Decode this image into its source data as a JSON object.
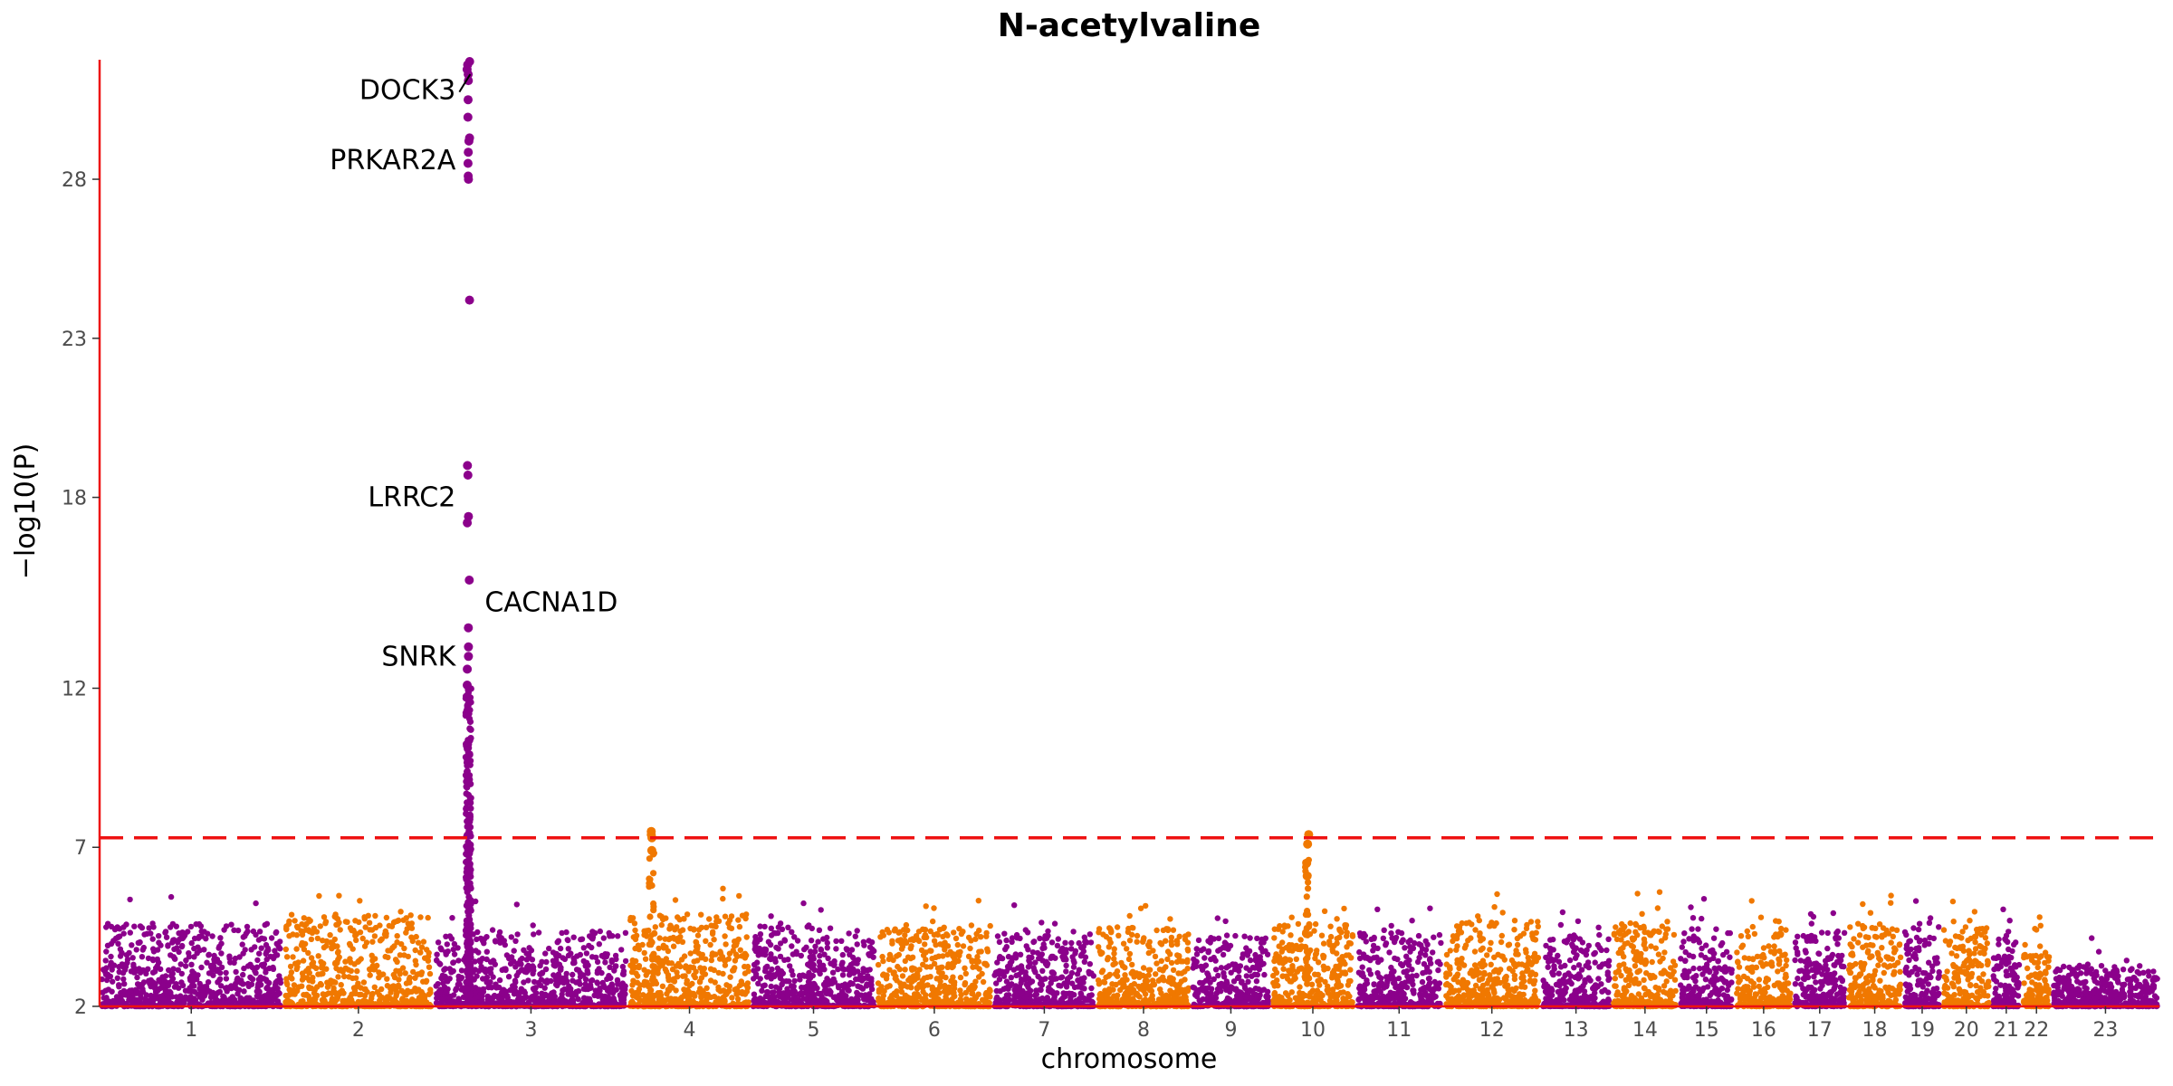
{
  "colors": {
    "odd_chromosome": "#8B008B",
    "even_chromosome": "#F07800",
    "threshold_line": "#EE1111",
    "axis_line": "#EE1111",
    "tick_text": "#4d4d4d"
  },
  "chart_data": {
    "type": "scatter",
    "subtype": "manhattan",
    "title": "N-acetylvaline",
    "xlabel": "chromosome",
    "ylabel": "−log10(P)",
    "ylim": [
      2,
      31.7
    ],
    "yticks": [
      2,
      7,
      12,
      18,
      23,
      28
    ],
    "genome_wide_threshold": 7.3,
    "grid": false,
    "chromosomes": [
      {
        "label": "1",
        "start": 0,
        "end": 0.85,
        "color": "odd_chromosome",
        "max_bg": 4.6
      },
      {
        "label": "2",
        "start": 0.85,
        "end": 1.55,
        "color": "even_chromosome",
        "max_bg": 4.9
      },
      {
        "label": "3",
        "start": 1.55,
        "end": 2.45,
        "color": "odd_chromosome",
        "max_bg": 4.4
      },
      {
        "label": "4",
        "start": 2.45,
        "end": 3.02,
        "color": "even_chromosome",
        "max_bg": 4.9
      },
      {
        "label": "5",
        "start": 3.02,
        "end": 3.6,
        "color": "odd_chromosome",
        "max_bg": 4.6
      },
      {
        "label": "6",
        "start": 3.6,
        "end": 4.14,
        "color": "even_chromosome",
        "max_bg": 4.6
      },
      {
        "label": "7",
        "start": 4.14,
        "end": 4.62,
        "color": "odd_chromosome",
        "max_bg": 4.4
      },
      {
        "label": "8",
        "start": 4.62,
        "end": 5.06,
        "color": "even_chromosome",
        "max_bg": 4.5
      },
      {
        "label": "9",
        "start": 5.06,
        "end": 5.43,
        "color": "odd_chromosome",
        "max_bg": 4.2
      },
      {
        "label": "10",
        "start": 5.43,
        "end": 5.82,
        "color": "even_chromosome",
        "max_bg": 4.6
      },
      {
        "label": "11",
        "start": 5.82,
        "end": 6.23,
        "color": "odd_chromosome",
        "max_bg": 4.4
      },
      {
        "label": "12",
        "start": 6.23,
        "end": 6.68,
        "color": "even_chromosome",
        "max_bg": 4.7
      },
      {
        "label": "13",
        "start": 6.68,
        "end": 7.01,
        "color": "odd_chromosome",
        "max_bg": 4.3
      },
      {
        "label": "14",
        "start": 7.01,
        "end": 7.32,
        "color": "even_chromosome",
        "max_bg": 4.7
      },
      {
        "label": "15",
        "start": 7.32,
        "end": 7.58,
        "color": "odd_chromosome",
        "max_bg": 4.5
      },
      {
        "label": "16",
        "start": 7.58,
        "end": 7.85,
        "color": "even_chromosome",
        "max_bg": 4.5
      },
      {
        "label": "17",
        "start": 7.85,
        "end": 8.1,
        "color": "odd_chromosome",
        "max_bg": 4.4
      },
      {
        "label": "18",
        "start": 8.1,
        "end": 8.36,
        "color": "even_chromosome",
        "max_bg": 4.6
      },
      {
        "label": "19",
        "start": 8.36,
        "end": 8.54,
        "color": "odd_chromosome",
        "max_bg": 4.5
      },
      {
        "label": "20",
        "start": 8.54,
        "end": 8.77,
        "color": "even_chromosome",
        "max_bg": 4.5
      },
      {
        "label": "21",
        "start": 8.77,
        "end": 8.91,
        "color": "odd_chromosome",
        "max_bg": 4.2
      },
      {
        "label": "22",
        "start": 8.91,
        "end": 9.05,
        "color": "even_chromosome",
        "max_bg": 4.0
      },
      {
        "label": "23",
        "start": 9.05,
        "end": 9.55,
        "color": "odd_chromosome",
        "max_bg": 3.3
      }
    ],
    "peaks": [
      {
        "chromosome": "3",
        "pos": 1.71,
        "top": 31.7,
        "points": [
          31.7,
          31.6,
          31.45,
          31.3,
          31.1,
          30.5,
          29.95,
          29.3,
          29.2,
          28.85,
          28.5,
          28.1,
          28.0,
          24.2,
          19.0,
          18.7,
          17.4,
          17.2,
          15.4,
          13.9,
          13.3,
          13.0,
          12.6,
          12.1
        ]
      },
      {
        "chromosome": "4",
        "pos": 2.56,
        "top": 7.5,
        "points": [
          7.5,
          7.4,
          7.3,
          6.9
        ]
      },
      {
        "chromosome": "10",
        "pos": 5.6,
        "top": 7.4,
        "points": [
          7.4,
          7.1,
          6.5,
          6.1
        ]
      }
    ],
    "gene_labels": [
      {
        "text": "DOCK3",
        "pos": 1.71,
        "y": 30.8,
        "side": "left"
      },
      {
        "text": "PRKAR2A",
        "pos": 1.71,
        "y": 28.6,
        "side": "left"
      },
      {
        "text": "LRRC2",
        "pos": 1.71,
        "y": 18.0,
        "side": "left"
      },
      {
        "text": "CACNA1D",
        "pos": 1.71,
        "y": 14.7,
        "side": "right"
      },
      {
        "text": "SNRK",
        "pos": 1.71,
        "y": 13.0,
        "side": "left"
      }
    ]
  }
}
